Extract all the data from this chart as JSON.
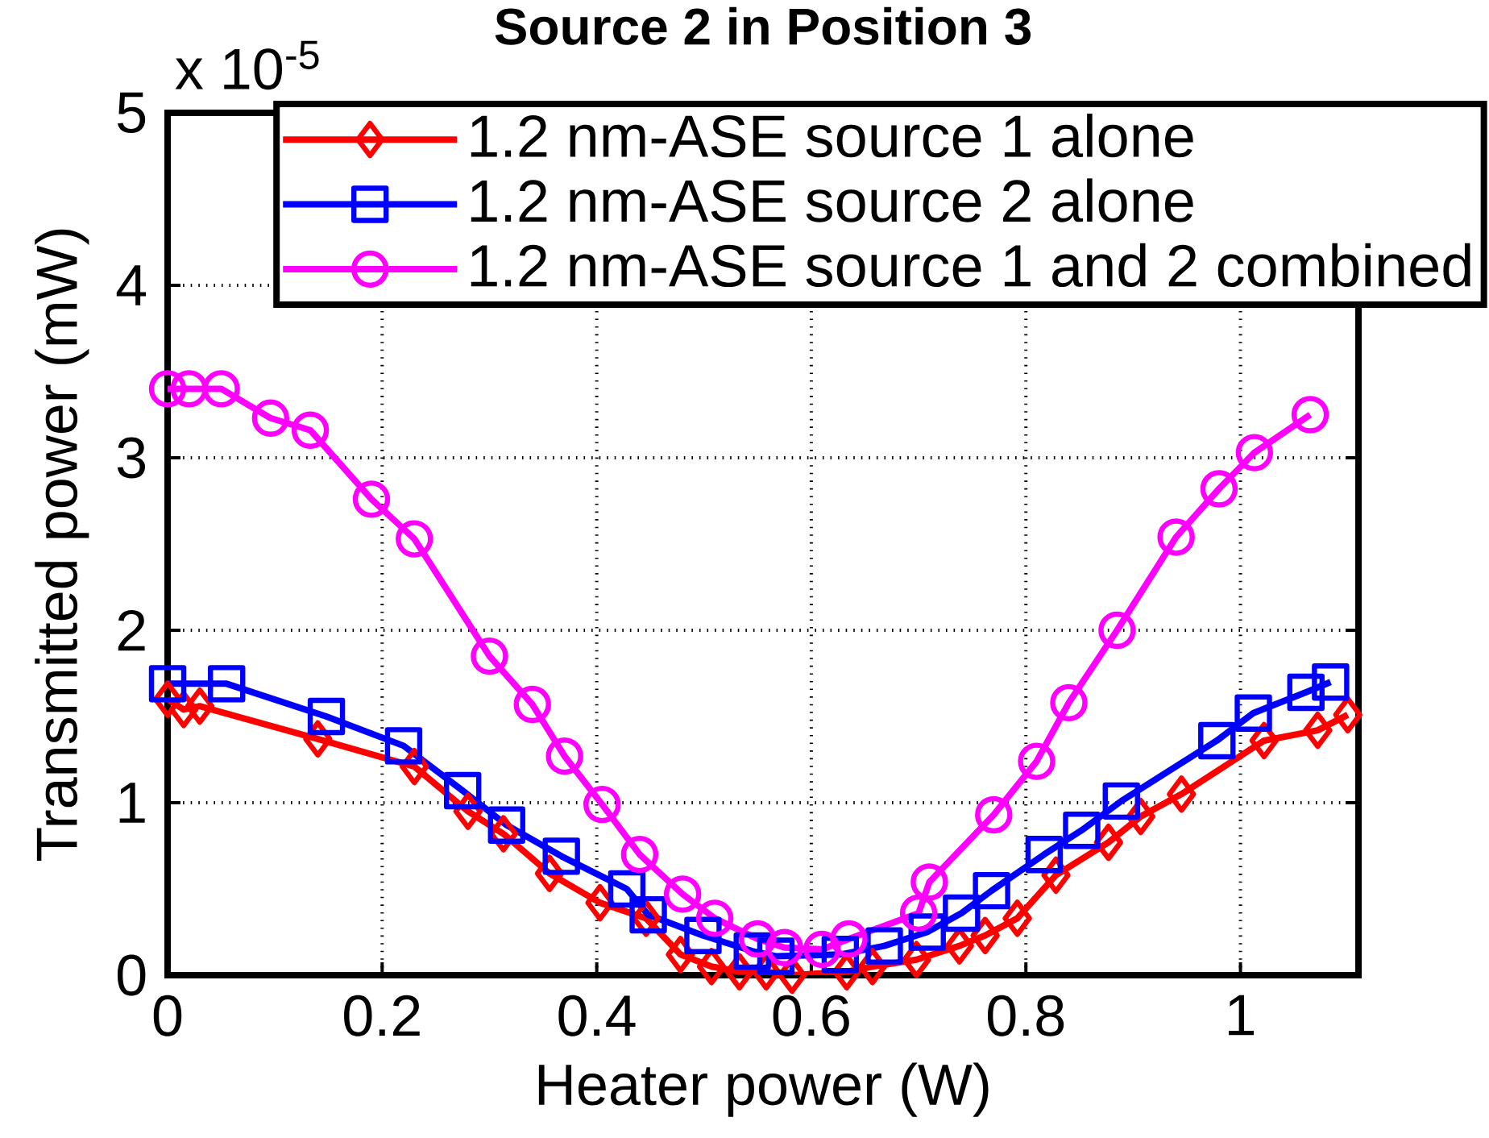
{
  "chart_data": {
    "type": "line",
    "title": "Source 2 in Position 3",
    "xlabel": "Heater power (W)",
    "ylabel": "Transmitted power (mW)",
    "annotations": [
      "x 10$^{-5}$"
    ],
    "xlim": [
      0,
      1.11
    ],
    "ylim": [
      0,
      5
    ],
    "xticks": [
      0,
      0.2,
      0.4,
      0.6,
      0.8,
      1
    ],
    "yticks": [
      0,
      1,
      2,
      3,
      4,
      5
    ],
    "grid": true,
    "legend": "top right",
    "line_style": "solid",
    "series": [
      {
        "name": "1.2 nm-ASE source 1 alone",
        "color": "#ff0000",
        "marker": "diamond",
        "x": [
          0,
          0.015,
          0.03,
          0.14,
          0.23,
          0.28,
          0.313,
          0.356,
          0.403,
          0.446,
          0.478,
          0.507,
          0.533,
          0.558,
          0.582,
          0.633,
          0.657,
          0.698,
          0.738,
          0.762,
          0.792,
          0.828,
          0.877,
          0.907,
          0.945,
          1.022,
          1.072,
          1.1
        ],
        "values": [
          1.6,
          1.54,
          1.56,
          1.37,
          1.21,
          0.95,
          0.82,
          0.59,
          0.42,
          0.33,
          0.12,
          0.05,
          0.02,
          0.02,
          0.0,
          0.02,
          0.05,
          0.09,
          0.17,
          0.23,
          0.33,
          0.58,
          0.77,
          0.92,
          1.05,
          1.36,
          1.42,
          1.51
        ]
      },
      {
        "name": "1.2 nm-ASE source 2 alone",
        "color": "#0000ff",
        "marker": "square",
        "x": [
          0,
          0.055,
          0.148,
          0.22,
          0.275,
          0.316,
          0.367,
          0.428,
          0.448,
          0.499,
          0.545,
          0.567,
          0.627,
          0.668,
          0.708,
          0.74,
          0.768,
          0.817,
          0.852,
          0.889,
          0.978,
          1.012,
          1.061,
          1.084
        ],
        "values": [
          1.69,
          1.69,
          1.5,
          1.33,
          1.07,
          0.87,
          0.69,
          0.5,
          0.35,
          0.23,
          0.14,
          0.11,
          0.12,
          0.17,
          0.25,
          0.36,
          0.49,
          0.7,
          0.84,
          1.01,
          1.36,
          1.52,
          1.64,
          1.7
        ]
      },
      {
        "name": "1.2 nm-ASE source 1 and 2 combined",
        "color": "#ff00ff",
        "marker": "circle",
        "x": [
          0,
          0.02,
          0.05,
          0.096,
          0.133,
          0.19,
          0.23,
          0.3,
          0.34,
          0.37,
          0.405,
          0.44,
          0.48,
          0.51,
          0.55,
          0.575,
          0.61,
          0.635,
          0.7,
          0.71,
          0.77,
          0.81,
          0.84,
          0.885,
          0.94,
          0.98,
          1.013,
          1.065
        ],
        "values": [
          3.4,
          3.4,
          3.4,
          3.23,
          3.16,
          2.76,
          2.53,
          1.85,
          1.57,
          1.27,
          0.99,
          0.7,
          0.47,
          0.33,
          0.21,
          0.16,
          0.15,
          0.21,
          0.36,
          0.54,
          0.93,
          1.24,
          1.58,
          2.0,
          2.54,
          2.82,
          3.03,
          3.25
        ]
      }
    ]
  }
}
